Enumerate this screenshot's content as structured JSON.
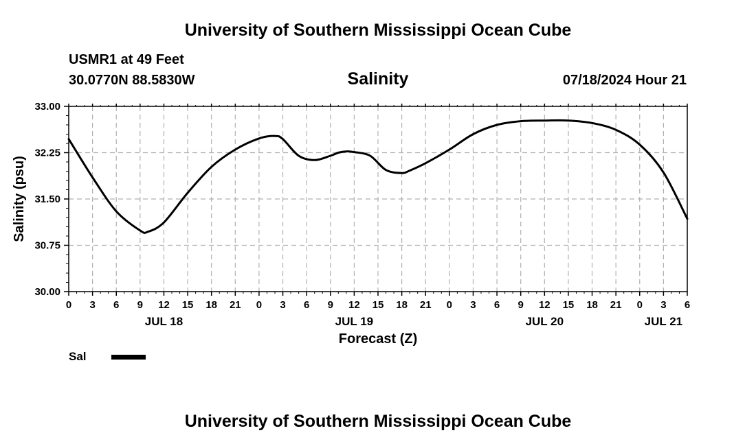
{
  "header": {
    "title": "University of Southern Mississippi Ocean Cube",
    "station": "USMR1 at 49 Feet",
    "coords": "30.0770N  88.5830W",
    "chart_title": "Salinity",
    "timestamp": "07/18/2024 Hour 21"
  },
  "footer": {
    "title": "University of Southern Mississippi Ocean Cube"
  },
  "legend": {
    "label": "Sal"
  },
  "colors": {
    "line": "#000000",
    "grid": "#b0b0b0"
  },
  "chart_data": {
    "type": "line",
    "title": "Salinity",
    "xlabel": "Forecast (Z)",
    "ylabel": "Salinity (psu)",
    "ylim": [
      30.0,
      33.0
    ],
    "xlim": [
      0,
      78
    ],
    "y_ticks": [
      "30.00",
      "30.75",
      "31.50",
      "32.25",
      "33.00"
    ],
    "x_tick_labels": [
      "0",
      "3",
      "6",
      "9",
      "12",
      "15",
      "18",
      "21",
      "0",
      "3",
      "6",
      "9",
      "12",
      "15",
      "18",
      "21",
      "0",
      "3",
      "6",
      "9",
      "12",
      "15",
      "18",
      "21",
      "0",
      "3",
      "6"
    ],
    "date_labels": [
      {
        "label": "JUL 18",
        "hour": 12
      },
      {
        "label": "JUL 19",
        "hour": 36
      },
      {
        "label": "JUL 20",
        "hour": 60
      },
      {
        "label": "JUL 21",
        "hour": 75
      }
    ],
    "series": [
      {
        "name": "Sal",
        "x": [
          0,
          3,
          6,
          9,
          10,
          12,
          15,
          18,
          21,
          24,
          26,
          27,
          29,
          31,
          33,
          34,
          35,
          36,
          38,
          40,
          42,
          43,
          45,
          48,
          51,
          54,
          57,
          60,
          63,
          66,
          69,
          72,
          75,
          78
        ],
        "values": [
          32.47,
          31.85,
          31.3,
          30.99,
          30.97,
          31.12,
          31.6,
          32.02,
          32.3,
          32.48,
          32.52,
          32.47,
          32.2,
          32.13,
          32.2,
          32.25,
          32.27,
          32.26,
          32.2,
          31.97,
          31.92,
          31.96,
          32.08,
          32.3,
          32.55,
          32.7,
          32.76,
          32.77,
          32.77,
          32.73,
          32.62,
          32.38,
          31.93,
          31.18
        ]
      }
    ]
  }
}
